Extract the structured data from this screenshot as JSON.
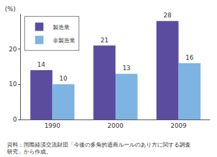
{
  "chart_data": {
    "type": "bar",
    "ylabel": "(%)",
    "categories": [
      "1990",
      "2000",
      "2009"
    ],
    "series": [
      {
        "name": "製造業",
        "color": "#5b4c9f",
        "values": [
          14,
          21,
          28
        ]
      },
      {
        "name": "非製造業",
        "color": "#7db4e1",
        "values": [
          10,
          13,
          16
        ]
      }
    ],
    "ylim": [
      0,
      30
    ],
    "yticks": [
      0,
      10,
      20
    ],
    "grid": false,
    "legend": "top-left",
    "data_labels": true,
    "annotations": [
      "資料：国際経済交流財団「今後の多角的通商ルールのあり方に関する調査研究」から作成。"
    ]
  }
}
